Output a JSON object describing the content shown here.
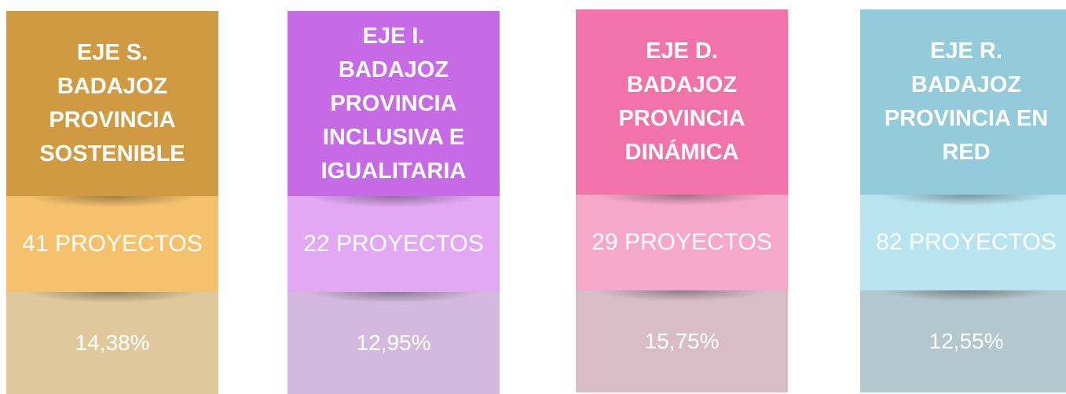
{
  "cards": [
    {
      "title_lines": [
        "EJE S.",
        "BADAJOZ",
        "PROVINCIA",
        "SOSTENIBLE"
      ],
      "projects": "41 PROYECTOS",
      "percentage": "14,38%",
      "colors": [
        "#d09a43",
        "#f6c16c",
        "#dfc89c"
      ]
    },
    {
      "title_lines": [
        "EJE I.",
        "BADAJOZ",
        "PROVINCIA",
        "INCLUSIVA E",
        "IGUALITARIA"
      ],
      "projects": "22 PROYECTOS",
      "percentage": "12,95%",
      "colors": [
        "#c76ae6",
        "#e2a8f4",
        "#d3b9de"
      ]
    },
    {
      "title_lines": [
        "EJE D.",
        "BADAJOZ",
        "PROVINCIA",
        "DINÁMICA"
      ],
      "projects": "29 PROYECTOS",
      "percentage": "15,75%",
      "colors": [
        "#f273aa",
        "#f6a8cb",
        "#d8bdc7"
      ]
    },
    {
      "title_lines": [
        "EJE R.",
        "BADAJOZ",
        "PROVINCIA EN",
        "RED"
      ],
      "projects": "82 PROYECTOS",
      "percentage": "12,55%",
      "colors": [
        "#93cbdb",
        "#b8e4ef",
        "#b3c8cd"
      ]
    }
  ]
}
